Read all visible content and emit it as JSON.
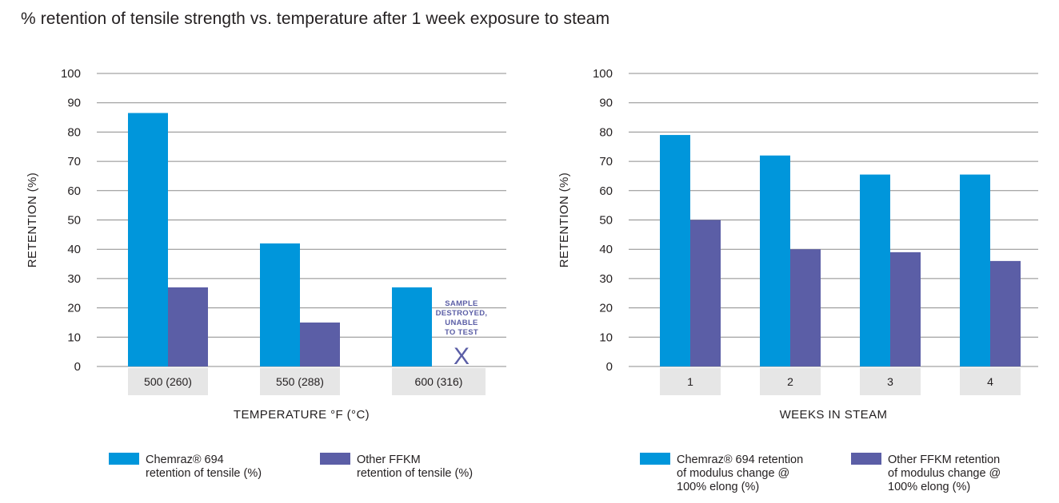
{
  "title": "% retention of tensile strength vs. temperature after 1 week exposure to steam",
  "colors": {
    "primary": "#0096db",
    "secondary": "#5b5ea6",
    "grid": "#8c8c8c",
    "category_bg": "#e6e6e6"
  },
  "chart_data": [
    {
      "type": "bar",
      "categories": [
        "500 (260)",
        "550 (288)",
        "600 (316)"
      ],
      "series": [
        {
          "name": "Chemraz® 694 retention of tensile (%)",
          "legend_lines": [
            "Chemraz® 694",
            "retention of tensile (%)"
          ],
          "values": [
            86.5,
            42,
            27
          ]
        },
        {
          "name": "Other FFKM retention of tensile (%)",
          "legend_lines": [
            "Other FFKM",
            "retention of tensile (%)"
          ],
          "values": [
            27,
            15,
            null
          ]
        }
      ],
      "yticks": [
        "0",
        "10",
        "20",
        "30",
        "40",
        "50",
        "60",
        "70",
        "80",
        "90",
        "100"
      ],
      "ylim": [
        0,
        100
      ],
      "xlabel": "TEMPERATURE °F (°C)",
      "ylabel": "RETENTION (%)",
      "annotation": {
        "lines": [
          "SAMPLE",
          "DESTROYED,",
          "UNABLE",
          "TO TEST"
        ],
        "marker": "X"
      }
    },
    {
      "type": "bar",
      "categories": [
        "1",
        "2",
        "3",
        "4"
      ],
      "series": [
        {
          "name": "Chemraz® 694 retention of modulus change @ 100% elong (%)",
          "legend_lines": [
            "Chemraz® 694 retention",
            "of modulus change @",
            "100% elong (%)"
          ],
          "values": [
            79,
            72,
            65.5,
            65.5
          ]
        },
        {
          "name": "Other FFKM retention of modulus change @ 100% elong (%)",
          "legend_lines": [
            "Other FFKM retention",
            "of modulus change @",
            "100% elong (%)"
          ],
          "values": [
            50,
            40,
            39,
            36
          ]
        }
      ],
      "yticks": [
        "0",
        "10",
        "20",
        "30",
        "40",
        "50",
        "60",
        "70",
        "80",
        "90",
        "100"
      ],
      "ylim": [
        0,
        100
      ],
      "xlabel": "WEEKS IN STEAM",
      "ylabel": "RETENTION (%)"
    }
  ]
}
